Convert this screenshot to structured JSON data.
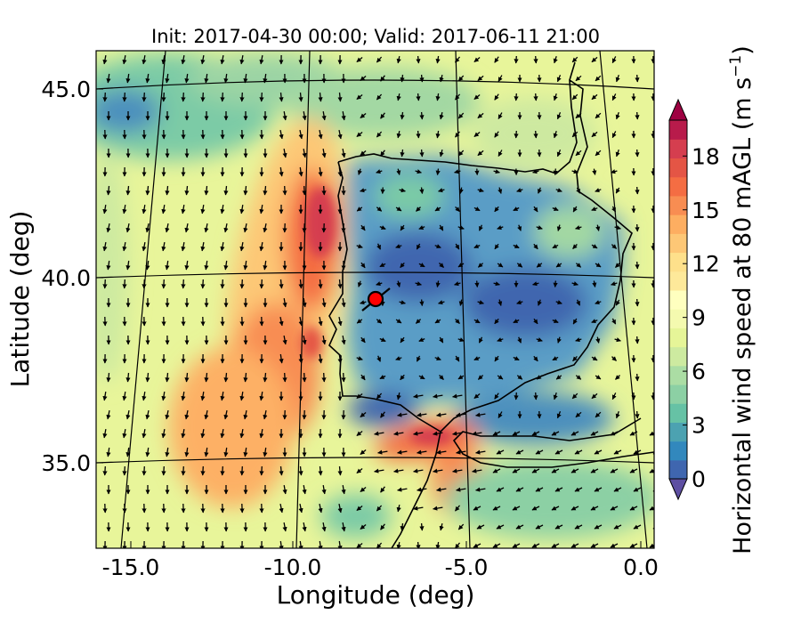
{
  "title": "Init: 2017-04-30 00:00; Valid: 2017-06-11 21:00",
  "x_axis": {
    "label": "Longitude (deg)",
    "ticks": [
      "-15.0",
      "-10.0",
      "-5.0",
      "0.0"
    ],
    "tick_values": [
      -15,
      -10,
      -5,
      0
    ]
  },
  "y_axis": {
    "label": "Latitude (deg)",
    "ticks": [
      "45.0",
      "40.0",
      "35.0"
    ],
    "tick_values": [
      45,
      40,
      35
    ]
  },
  "colorbar": {
    "label": "Horizontal wind speed at 80 mAGL (m s",
    "label_sup": "−1",
    "label_end": ")",
    "ticks": [
      "0",
      "3",
      "6",
      "9",
      "12",
      "15",
      "18"
    ],
    "tick_values": [
      0,
      3,
      6,
      9,
      12,
      15,
      18
    ],
    "range": [
      0,
      20
    ],
    "extend": "both",
    "colors": [
      "#5e4fa2",
      "#3f66af",
      "#3288bd",
      "#4ca2b1",
      "#66c2a5",
      "#8cd0a4",
      "#abdda4",
      "#cdeaa0",
      "#e6f598",
      "#f4faaf",
      "#ffffbf",
      "#fee99a",
      "#fee08b",
      "#fdc776",
      "#fdae61",
      "#f88d52",
      "#f46d43",
      "#e45545",
      "#d53e4f",
      "#b81b4b",
      "#9e0142"
    ]
  },
  "map": {
    "lon_range": [
      -16,
      0
    ],
    "lat_range": [
      33,
      46
    ],
    "marker": {
      "lon": -7.7,
      "lat": 39.3,
      "color": "#ff0000"
    },
    "wind_field": "ocean mostly from north (southward arrows), coastal jet 14-17 m/s off western Portugal, strong easterly jet 15-18 m/s through the Strait of Gibraltar, weak 2-5 m/s winds over central Iberia"
  }
}
